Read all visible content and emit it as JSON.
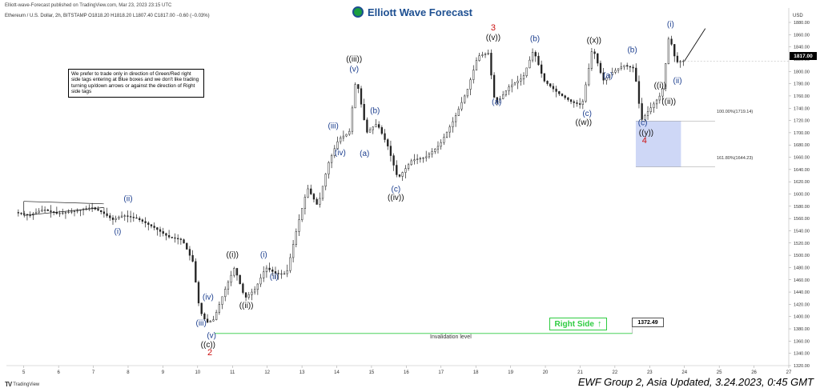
{
  "header_text": "Elliott-wave-Forecast published on TradingView.com, Mar 23, 2023 23:15 UTC",
  "symbol_line": "Ethereum / U.S. Dollar, 2h, BITSTAMP  O1818.20  H1818.20  L1807.40  C1817.00  −0.60 (−0.03%)",
  "logo": {
    "text": "Elliott Wave Forecast",
    "icon": "ewf-globe-icon"
  },
  "note_text": "We prefer to trade only in direction of Green/Red right side tags entering at Blue boxes and we don't like trading turning up/down arrows or against the direction of Right side tags",
  "right_side_label": "Right Side",
  "right_side_icon": "up-arrow-icon",
  "invalidation_label": "Invalidation level",
  "invalidation_value": "1372.49",
  "fib_labels": [
    "100.00%(1719.14)",
    "161.80%(1644.23)"
  ],
  "current_price_label": "1817.00",
  "footer": "EWF Group 2, Asia Updated, 3.24.2023, 0:45 GMT",
  "tradingview_label": "TradingView",
  "colors": {
    "wave_blue": "#1d3f8f",
    "wave_black": "#111111",
    "wave_red": "#cc1111",
    "green": "#2ecc40",
    "blue_box": "#c9d3f5",
    "candle": "#222222"
  },
  "chart_data": {
    "type": "candlestick",
    "currency": "USD",
    "ylim": [
      1320,
      1880
    ],
    "y_ticks": [
      1880,
      1860,
      1840,
      1820,
      1800,
      1780,
      1760,
      1740,
      1720,
      1700,
      1680,
      1660,
      1640,
      1620,
      1600,
      1580,
      1560,
      1540,
      1520,
      1500,
      1480,
      1460,
      1440,
      1420,
      1400,
      1380,
      1360,
      1340,
      1320
    ],
    "x_ticks": [
      "5",
      "6",
      "7",
      "8",
      "9",
      "10",
      "11",
      "12",
      "13",
      "14",
      "15",
      "16",
      "17",
      "18",
      "19",
      "20",
      "21",
      "22",
      "23",
      "24",
      "25",
      "26",
      "27"
    ],
    "path": [
      [
        4.8,
        1570
      ],
      [
        5.2,
        1565
      ],
      [
        5.6,
        1575
      ],
      [
        6.0,
        1568
      ],
      [
        6.5,
        1572
      ],
      [
        7.0,
        1578
      ],
      [
        7.3,
        1570
      ],
      [
        7.6,
        1558
      ],
      [
        7.9,
        1565
      ],
      [
        8.3,
        1560
      ],
      [
        8.8,
        1545
      ],
      [
        9.2,
        1530
      ],
      [
        9.6,
        1525
      ],
      [
        9.9,
        1490
      ],
      [
        10.1,
        1410
      ],
      [
        10.3,
        1390
      ],
      [
        10.5,
        1395
      ],
      [
        10.8,
        1440
      ],
      [
        11.1,
        1480
      ],
      [
        11.4,
        1430
      ],
      [
        11.7,
        1445
      ],
      [
        12.0,
        1480
      ],
      [
        12.3,
        1470
      ],
      [
        12.6,
        1470
      ],
      [
        12.9,
        1545
      ],
      [
        13.2,
        1610
      ],
      [
        13.5,
        1580
      ],
      [
        13.8,
        1650
      ],
      [
        14.1,
        1690
      ],
      [
        14.4,
        1700
      ],
      [
        14.6,
        1790
      ],
      [
        14.9,
        1700
      ],
      [
        15.2,
        1715
      ],
      [
        15.5,
        1680
      ],
      [
        15.8,
        1625
      ],
      [
        16.2,
        1655
      ],
      [
        16.6,
        1660
      ],
      [
        17.0,
        1680
      ],
      [
        17.4,
        1720
      ],
      [
        17.8,
        1770
      ],
      [
        18.1,
        1825
      ],
      [
        18.4,
        1830
      ],
      [
        18.6,
        1745
      ],
      [
        19.0,
        1775
      ],
      [
        19.4,
        1790
      ],
      [
        19.7,
        1835
      ],
      [
        20.0,
        1785
      ],
      [
        20.4,
        1765
      ],
      [
        20.8,
        1750
      ],
      [
        21.1,
        1745
      ],
      [
        21.4,
        1840
      ],
      [
        21.7,
        1785
      ],
      [
        22.0,
        1800
      ],
      [
        22.3,
        1810
      ],
      [
        22.6,
        1805
      ],
      [
        22.8,
        1720
      ],
      [
        23.0,
        1735
      ],
      [
        23.2,
        1750
      ],
      [
        23.4,
        1765
      ],
      [
        23.6,
        1860
      ],
      [
        23.8,
        1815
      ],
      [
        24.0,
        1817
      ]
    ],
    "projection": [
      [
        24.0,
        1817
      ],
      [
        24.6,
        1870
      ]
    ],
    "triangle": {
      "upper": [
        [
          5.0,
          1588
        ],
        [
          7.3,
          1584
        ]
      ],
      "lower": [
        [
          5.0,
          1565
        ],
        [
          7.3,
          1578
        ]
      ]
    },
    "invalidation_line": {
      "y": 1372.49,
      "x_start": 10.5,
      "x_end": 22.5
    },
    "blue_box": {
      "x_start": 22.6,
      "x_end": 23.9,
      "y_top": 1719.14,
      "y_bottom": 1644.23
    },
    "wave_labels": [
      {
        "text": "(ii)",
        "x": 8.0,
        "y": 1588,
        "color": "blue"
      },
      {
        "text": "(i)",
        "x": 7.7,
        "y": 1535,
        "color": "blue"
      },
      {
        "text": "(iv)",
        "x": 10.3,
        "y": 1428,
        "color": "blue"
      },
      {
        "text": "(iii)",
        "x": 10.1,
        "y": 1385,
        "color": "blue"
      },
      {
        "text": "(v)",
        "x": 10.4,
        "y": 1365,
        "color": "blue"
      },
      {
        "text": "((c))",
        "x": 10.3,
        "y": 1350,
        "color": "black"
      },
      {
        "text": "2",
        "x": 10.35,
        "y": 1337,
        "color": "red"
      },
      {
        "text": "((i))",
        "x": 11.0,
        "y": 1497,
        "color": "black"
      },
      {
        "text": "((ii))",
        "x": 11.4,
        "y": 1414,
        "color": "black"
      },
      {
        "text": "(i)",
        "x": 11.9,
        "y": 1497,
        "color": "blue"
      },
      {
        "text": "(ii)",
        "x": 12.2,
        "y": 1461,
        "color": "blue"
      },
      {
        "text": "(iii)",
        "x": 13.9,
        "y": 1707,
        "color": "blue"
      },
      {
        "text": "(iv)",
        "x": 14.1,
        "y": 1663,
        "color": "blue"
      },
      {
        "text": "((iii))",
        "x": 14.5,
        "y": 1816,
        "color": "black"
      },
      {
        "text": "(v)",
        "x": 14.5,
        "y": 1800,
        "color": "blue"
      },
      {
        "text": "(a)",
        "x": 14.8,
        "y": 1662,
        "color": "blue"
      },
      {
        "text": "(b)",
        "x": 15.1,
        "y": 1732,
        "color": "blue"
      },
      {
        "text": "(c)",
        "x": 15.7,
        "y": 1604,
        "color": "blue"
      },
      {
        "text": "((iv))",
        "x": 15.7,
        "y": 1590,
        "color": "black"
      },
      {
        "text": "3",
        "x": 18.5,
        "y": 1867,
        "color": "red"
      },
      {
        "text": "((v))",
        "x": 18.5,
        "y": 1851,
        "color": "black"
      },
      {
        "text": "(a)",
        "x": 18.6,
        "y": 1746,
        "color": "blue"
      },
      {
        "text": "(b)",
        "x": 19.7,
        "y": 1849,
        "color": "blue"
      },
      {
        "text": "((x))",
        "x": 21.4,
        "y": 1847,
        "color": "black"
      },
      {
        "text": "(a)",
        "x": 21.8,
        "y": 1789,
        "color": "blue"
      },
      {
        "text": "(c)",
        "x": 21.2,
        "y": 1727,
        "color": "blue"
      },
      {
        "text": "((w))",
        "x": 21.1,
        "y": 1713,
        "color": "black"
      },
      {
        "text": "(b)",
        "x": 22.5,
        "y": 1831,
        "color": "blue"
      },
      {
        "text": "(c)",
        "x": 22.8,
        "y": 1712,
        "color": "blue"
      },
      {
        "text": "((y))",
        "x": 22.9,
        "y": 1696,
        "color": "black"
      },
      {
        "text": "4",
        "x": 22.85,
        "y": 1683,
        "color": "red"
      },
      {
        "text": "(i)",
        "x": 23.6,
        "y": 1873,
        "color": "blue"
      },
      {
        "text": "(ii)",
        "x": 23.8,
        "y": 1781,
        "color": "blue"
      },
      {
        "text": "((i))",
        "x": 23.3,
        "y": 1773,
        "color": "black"
      },
      {
        "text": "((ii))",
        "x": 23.55,
        "y": 1747,
        "color": "black"
      }
    ]
  }
}
